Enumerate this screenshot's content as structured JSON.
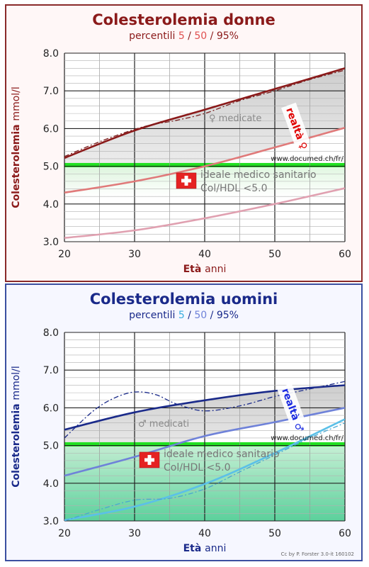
{
  "chart_data": [
    {
      "type": "line",
      "title": "Colesterolemia donne",
      "subtitle": {
        "prefix": "percentili ",
        "p5": "5",
        "p50": "50",
        "p95": "95%",
        "sep": " / "
      },
      "ylabel": {
        "main": "Colesterolemia",
        "unit": "mmol/l"
      },
      "xlabel": {
        "main": "Età",
        "unit": "anni"
      },
      "xlim": [
        20,
        60
      ],
      "ylim": [
        3.0,
        8.0
      ],
      "xticks": [
        "20",
        "30",
        "40",
        "50",
        "60"
      ],
      "yticks": [
        "3.0",
        "4.0",
        "5.0",
        "6.0",
        "7.0",
        "8.0"
      ],
      "grid": true,
      "ideal_zone": [
        4.2,
        5.05
      ],
      "series": [
        {
          "percentile": "95",
          "color": "#8b1a1a",
          "x": [
            20,
            30,
            40,
            50,
            60
          ],
          "y": [
            5.22,
            5.95,
            6.5,
            7.05,
            7.6
          ]
        },
        {
          "percentile": "50",
          "color": "#e07a7a",
          "x": [
            20,
            30,
            40,
            50,
            60
          ],
          "y": [
            4.3,
            4.6,
            5.0,
            5.5,
            6.02
          ]
        },
        {
          "percentile": "5",
          "color": "#e0a0b0",
          "x": [
            20,
            30,
            40,
            50,
            60
          ],
          "y": [
            3.1,
            3.3,
            3.62,
            4.0,
            4.42
          ]
        },
        {
          "percentile": "medicated",
          "color": "#7a1f1f",
          "dashed": true,
          "x": [
            20,
            25,
            30,
            33,
            36,
            40,
            45,
            50,
            55,
            60
          ],
          "y": [
            5.26,
            5.65,
            5.98,
            6.12,
            6.22,
            6.4,
            6.74,
            7.0,
            7.3,
            7.55
          ]
        }
      ],
      "annotations": {
        "medicated": "♀ medicate",
        "reality": "realtà ♀",
        "url": "www.documed.ch/fr/",
        "ideal_line1": "ideale medico sanitario",
        "ideal_line2": "Col/HDL <5.0"
      },
      "colors": {
        "title": "#8b1a1a",
        "ylabel": "#8b1a1a",
        "xlabel": "#8b1a1a",
        "p5": "#e05050",
        "p50": "#e05050",
        "reality": "#e00000"
      }
    },
    {
      "type": "line",
      "title": "Colesterolemia uomini",
      "subtitle": {
        "prefix": "percentili ",
        "p5": "5",
        "p50": "50",
        "p95": "95%",
        "sep": " / "
      },
      "ylabel": {
        "main": "Colesterolemia",
        "unit": "mmol/l"
      },
      "xlabel": {
        "main": "Età",
        "unit": "anni"
      },
      "xlim": [
        20,
        60
      ],
      "ylim": [
        3.0,
        8.0
      ],
      "xticks": [
        "20",
        "30",
        "40",
        "50",
        "60"
      ],
      "yticks": [
        "3.0",
        "4.0",
        "5.0",
        "6.0",
        "7.0",
        "8.0"
      ],
      "grid": true,
      "ideal_zone": [
        3.0,
        5.05
      ],
      "series": [
        {
          "percentile": "95",
          "color": "#1a2a8a",
          "x": [
            20,
            30,
            40,
            50,
            60
          ],
          "y": [
            5.42,
            5.88,
            6.2,
            6.45,
            6.6
          ]
        },
        {
          "percentile": "50",
          "color": "#6f82d9",
          "x": [
            20,
            30,
            40,
            50,
            60
          ],
          "y": [
            4.2,
            4.7,
            5.25,
            5.62,
            6.0
          ]
        },
        {
          "percentile": "5",
          "color": "#5bc0e8",
          "x": [
            20,
            30,
            40,
            50,
            60
          ],
          "y": [
            3.02,
            3.38,
            3.98,
            4.8,
            5.7
          ]
        },
        {
          "percentile": "medicated-high",
          "color": "#1a2a8a",
          "dashed": true,
          "x": [
            20,
            24,
            27,
            30,
            33,
            36,
            40,
            45,
            50,
            55,
            60
          ],
          "y": [
            5.2,
            5.9,
            6.25,
            6.42,
            6.35,
            6.1,
            5.92,
            6.05,
            6.3,
            6.5,
            6.7
          ]
        },
        {
          "percentile": "medicated-low",
          "color": "#4aa8d0",
          "dashed": true,
          "x": [
            20,
            25,
            30,
            35,
            40,
            45,
            50,
            55,
            60
          ],
          "y": [
            3.0,
            3.3,
            3.55,
            3.6,
            3.85,
            4.3,
            4.75,
            5.2,
            5.6
          ]
        }
      ],
      "annotations": {
        "medicated": "♂ medicati",
        "reality": "realtà ♂",
        "url": "www.documed.ch/fr/",
        "ideal_line1": "ideale medico sanitario",
        "ideal_line2": "Col/HDL <5.0"
      },
      "colors": {
        "title": "#1a2a8a",
        "ylabel": "#1a2a8a",
        "xlabel": "#1a2a8a",
        "p5": "#3aaee0",
        "p50": "#6f82d9",
        "reality": "#1a2ae0"
      }
    }
  ],
  "credit": "Cc by P. Forster 3.0-it 160102"
}
